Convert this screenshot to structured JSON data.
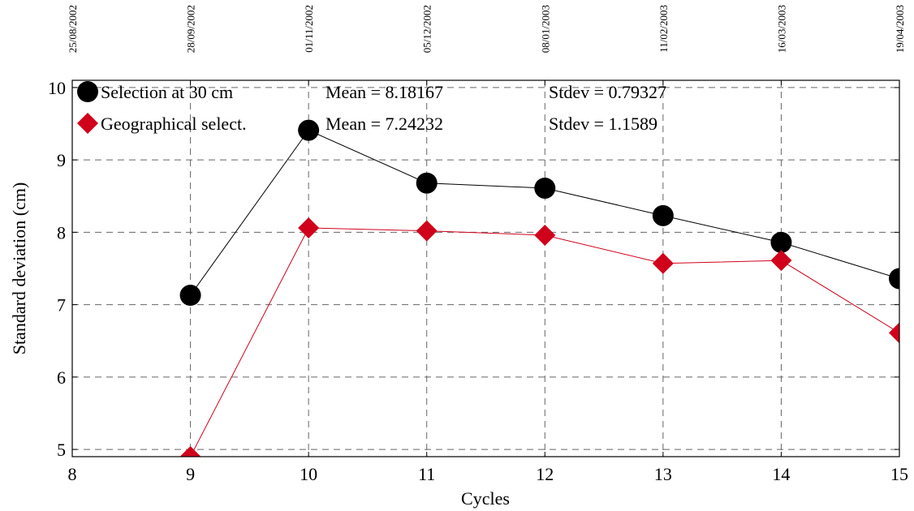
{
  "chart_data": {
    "type": "line",
    "xlabel": "Cycles",
    "ylabel": "Standard deviation (cm)",
    "xlim": [
      8,
      15
    ],
    "ylim": [
      4.9,
      10.1
    ],
    "x_ticks": [
      8,
      9,
      10,
      11,
      12,
      13,
      14,
      15
    ],
    "y_ticks": [
      5,
      6,
      7,
      8,
      9,
      10
    ],
    "top_axis_dates": [
      "25/08/2002",
      "28/09/2002",
      "01/11/2002",
      "05/12/2002",
      "08/01/2003",
      "11/02/2003",
      "16/03/2003",
      "19/04/2003"
    ],
    "grid": true,
    "legend_position": "top-left",
    "series": [
      {
        "name": "Selection at 30 cm",
        "marker": "circle",
        "color": "#000000",
        "mean_label": "Mean = 8.18167",
        "stdev_label": "Stdev = 0.79327",
        "x": [
          9,
          10,
          11,
          12,
          13,
          14,
          15
        ],
        "y": [
          7.13,
          9.41,
          8.68,
          8.61,
          8.23,
          7.86,
          7.36
        ]
      },
      {
        "name": "Geographical select.",
        "marker": "diamond",
        "color": "#d0021b",
        "mean_label": "Mean = 7.24232",
        "stdev_label": "Stdev = 1.1589",
        "x": [
          9,
          10,
          11,
          12,
          13,
          14,
          15
        ],
        "y": [
          4.9,
          8.06,
          8.02,
          7.96,
          7.57,
          7.61,
          6.61
        ]
      }
    ]
  }
}
